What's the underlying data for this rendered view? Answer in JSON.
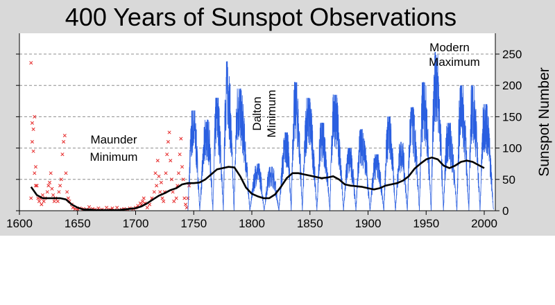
{
  "chart_data": {
    "type": "line",
    "title": "400 Years of Sunspot Observations",
    "ylabel": "Sunspot Number",
    "xlabel": "",
    "xlim": [
      1600,
      2010
    ],
    "ylim": [
      0,
      280
    ],
    "x_ticks": [
      "1600",
      "1650",
      "1700",
      "1750",
      "1800",
      "1850",
      "1900",
      "1950",
      "2000"
    ],
    "y_ticks": [
      "0",
      "50",
      "100",
      "150",
      "200",
      "250"
    ],
    "grid": "horizontal dashed",
    "annotations": [
      {
        "lines": [
          "Maunder",
          "Minimum"
        ],
        "orientation": "horizontal"
      },
      {
        "lines": [
          "Dalton",
          "Minimum"
        ],
        "orientation": "vertical"
      },
      {
        "lines": [
          "Modern",
          "Maximum"
        ],
        "orientation": "horizontal"
      }
    ],
    "series": [
      {
        "kind": "early observations (markers)",
        "color": "#e62a2a",
        "marker": "x",
        "points": [
          [
            1610,
            236
          ],
          [
            1610,
            20
          ],
          [
            1611,
            140
          ],
          [
            1611,
            110
          ],
          [
            1612,
            130
          ],
          [
            1612,
            95
          ],
          [
            1613,
            150
          ],
          [
            1613,
            60
          ],
          [
            1614,
            70
          ],
          [
            1614,
            40
          ],
          [
            1615,
            40
          ],
          [
            1616,
            20
          ],
          [
            1617,
            15
          ],
          [
            1618,
            20
          ],
          [
            1619,
            10
          ],
          [
            1620,
            25
          ],
          [
            1621,
            15
          ],
          [
            1622,
            20
          ],
          [
            1624,
            30
          ],
          [
            1625,
            40
          ],
          [
            1626,
            45
          ],
          [
            1627,
            60
          ],
          [
            1628,
            35
          ],
          [
            1629,
            25
          ],
          [
            1630,
            15
          ],
          [
            1631,
            20
          ],
          [
            1633,
            15
          ],
          [
            1634,
            30
          ],
          [
            1635,
            40
          ],
          [
            1636,
            50
          ],
          [
            1637,
            90
          ],
          [
            1638,
            110
          ],
          [
            1639,
            120
          ],
          [
            1640,
            60
          ],
          [
            1641,
            30
          ],
          [
            1642,
            20
          ],
          [
            1643,
            15
          ],
          [
            1645,
            10
          ],
          [
            1646,
            5
          ],
          [
            1648,
            3
          ],
          [
            1650,
            2
          ],
          [
            1652,
            4
          ],
          [
            1655,
            3
          ],
          [
            1658,
            2
          ],
          [
            1660,
            6
          ],
          [
            1663,
            3
          ],
          [
            1665,
            2
          ],
          [
            1668,
            4
          ],
          [
            1671,
            2
          ],
          [
            1675,
            5
          ],
          [
            1678,
            2
          ],
          [
            1680,
            4
          ],
          [
            1684,
            5
          ],
          [
            1688,
            2
          ],
          [
            1690,
            3
          ],
          [
            1693,
            2
          ],
          [
            1695,
            4
          ],
          [
            1698,
            3
          ],
          [
            1700,
            5
          ],
          [
            1702,
            8
          ],
          [
            1704,
            12
          ],
          [
            1705,
            10
          ],
          [
            1706,
            15
          ],
          [
            1707,
            20
          ],
          [
            1708,
            12
          ],
          [
            1710,
            5
          ],
          [
            1712,
            10
          ],
          [
            1714,
            20
          ],
          [
            1716,
            30
          ],
          [
            1717,
            60
          ],
          [
            1718,
            40
          ],
          [
            1719,
            80
          ],
          [
            1720,
            55
          ],
          [
            1721,
            30
          ],
          [
            1722,
            45
          ],
          [
            1723,
            20
          ],
          [
            1724,
            15
          ],
          [
            1725,
            30
          ],
          [
            1726,
            60
          ],
          [
            1727,
            90
          ],
          [
            1728,
            110
          ],
          [
            1729,
            125
          ],
          [
            1730,
            80
          ],
          [
            1731,
            50
          ],
          [
            1732,
            30
          ],
          [
            1733,
            15
          ],
          [
            1735,
            20
          ],
          [
            1736,
            40
          ],
          [
            1737,
            60
          ],
          [
            1738,
            90
          ],
          [
            1739,
            115
          ],
          [
            1740,
            70
          ],
          [
            1741,
            50
          ],
          [
            1742,
            20
          ],
          [
            1743,
            10
          ],
          [
            1744,
            5
          ],
          [
            1745,
            20
          ],
          [
            1746,
            40
          ]
        ]
      },
      {
        "kind": "monthly sunspot number",
        "color": "#2a5fe0",
        "cycles": [
          {
            "min": 1745.0,
            "max": 1749.5,
            "peak": 160
          },
          {
            "min": 1755.2,
            "max": 1761.5,
            "peak": 145
          },
          {
            "min": 1766.5,
            "max": 1769.7,
            "peak": 180
          },
          {
            "min": 1775.5,
            "max": 1778.4,
            "peak": 238
          },
          {
            "min": 1784.7,
            "max": 1788.1,
            "peak": 195
          },
          {
            "min": 1798.3,
            "max": 1805.2,
            "peak": 75
          },
          {
            "min": 1810.6,
            "max": 1816.4,
            "peak": 70
          },
          {
            "min": 1823.3,
            "max": 1829.9,
            "peak": 125
          },
          {
            "min": 1833.9,
            "max": 1837.2,
            "peak": 205
          },
          {
            "min": 1843.5,
            "max": 1848.1,
            "peak": 180
          },
          {
            "min": 1856.0,
            "max": 1860.1,
            "peak": 140
          },
          {
            "min": 1867.2,
            "max": 1870.6,
            "peak": 185
          },
          {
            "min": 1878.9,
            "max": 1883.9,
            "peak": 100
          },
          {
            "min": 1889.6,
            "max": 1894.1,
            "peak": 130
          },
          {
            "min": 1901.7,
            "max": 1907.0,
            "peak": 90
          },
          {
            "min": 1913.6,
            "max": 1917.6,
            "peak": 150
          },
          {
            "min": 1923.6,
            "max": 1928.4,
            "peak": 110
          },
          {
            "min": 1933.8,
            "max": 1937.4,
            "peak": 165
          },
          {
            "min": 1944.2,
            "max": 1947.5,
            "peak": 205
          },
          {
            "min": 1954.3,
            "max": 1957.9,
            "peak": 253
          },
          {
            "min": 1964.9,
            "max": 1968.9,
            "peak": 140
          },
          {
            "min": 1976.5,
            "max": 1979.9,
            "peak": 200
          },
          {
            "min": 1986.8,
            "max": 1989.6,
            "peak": 200
          },
          {
            "min": 1996.4,
            "max": 2000.3,
            "peak": 170
          },
          {
            "min": 2008.0,
            "max": 2010.0,
            "peak": 10
          }
        ]
      },
      {
        "kind": "smoothed trend",
        "color": "#000000",
        "points": [
          [
            1610,
            38
          ],
          [
            1615,
            25
          ],
          [
            1620,
            20
          ],
          [
            1625,
            20
          ],
          [
            1630,
            20
          ],
          [
            1635,
            20
          ],
          [
            1640,
            18
          ],
          [
            1645,
            10
          ],
          [
            1650,
            5
          ],
          [
            1655,
            2
          ],
          [
            1660,
            2
          ],
          [
            1665,
            1
          ],
          [
            1670,
            1
          ],
          [
            1675,
            1
          ],
          [
            1680,
            1
          ],
          [
            1685,
            1
          ],
          [
            1690,
            2
          ],
          [
            1695,
            3
          ],
          [
            1700,
            4
          ],
          [
            1705,
            7
          ],
          [
            1710,
            12
          ],
          [
            1715,
            18
          ],
          [
            1720,
            24
          ],
          [
            1725,
            28
          ],
          [
            1730,
            33
          ],
          [
            1735,
            36
          ],
          [
            1740,
            42
          ],
          [
            1745,
            44
          ],
          [
            1750,
            44
          ],
          [
            1755,
            45
          ],
          [
            1760,
            50
          ],
          [
            1765,
            58
          ],
          [
            1770,
            66
          ],
          [
            1775,
            68
          ],
          [
            1780,
            70
          ],
          [
            1785,
            69
          ],
          [
            1790,
            55
          ],
          [
            1795,
            37
          ],
          [
            1800,
            27
          ],
          [
            1805,
            23
          ],
          [
            1810,
            20
          ],
          [
            1815,
            20
          ],
          [
            1820,
            26
          ],
          [
            1825,
            38
          ],
          [
            1830,
            52
          ],
          [
            1835,
            60
          ],
          [
            1840,
            60
          ],
          [
            1845,
            58
          ],
          [
            1850,
            56
          ],
          [
            1855,
            54
          ],
          [
            1860,
            52
          ],
          [
            1865,
            53
          ],
          [
            1870,
            55
          ],
          [
            1875,
            50
          ],
          [
            1880,
            42
          ],
          [
            1885,
            40
          ],
          [
            1890,
            39
          ],
          [
            1895,
            38
          ],
          [
            1900,
            36
          ],
          [
            1905,
            34
          ],
          [
            1910,
            36
          ],
          [
            1915,
            40
          ],
          [
            1920,
            42
          ],
          [
            1925,
            44
          ],
          [
            1930,
            48
          ],
          [
            1935,
            55
          ],
          [
            1940,
            67
          ],
          [
            1945,
            75
          ],
          [
            1950,
            82
          ],
          [
            1955,
            85
          ],
          [
            1960,
            82
          ],
          [
            1965,
            72
          ],
          [
            1970,
            68
          ],
          [
            1975,
            72
          ],
          [
            1980,
            78
          ],
          [
            1985,
            80
          ],
          [
            1990,
            78
          ],
          [
            1995,
            73
          ],
          [
            2000,
            68
          ]
        ]
      }
    ]
  }
}
